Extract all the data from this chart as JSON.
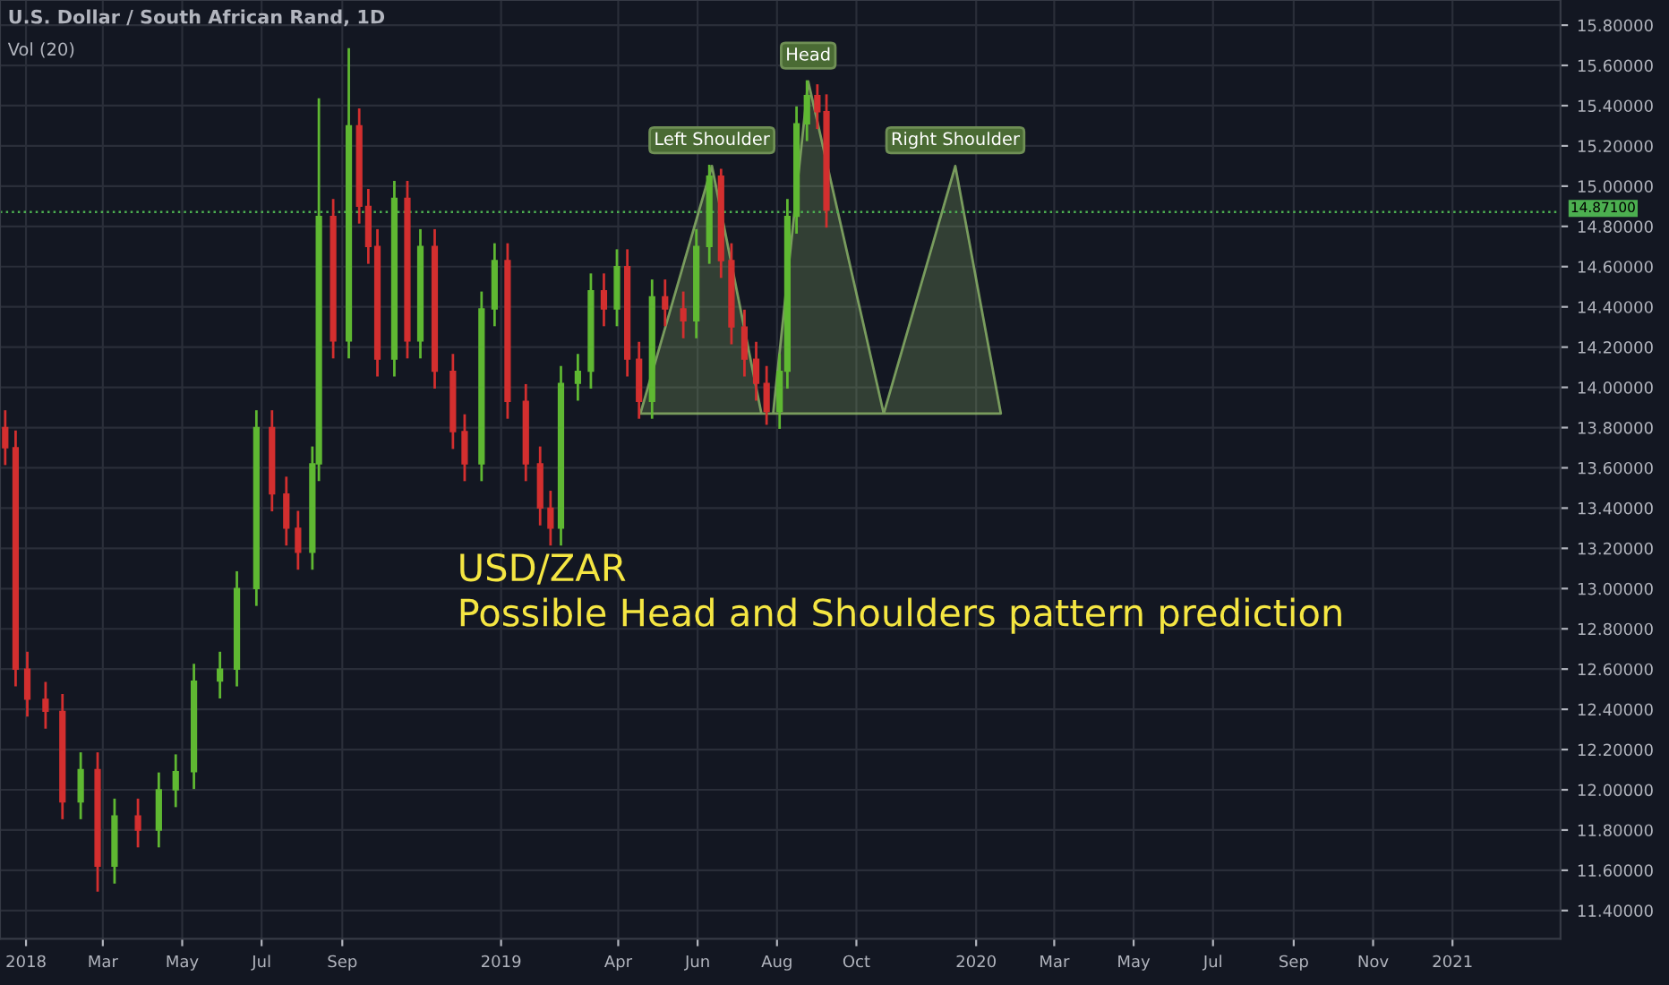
{
  "chart_data": {
    "type": "candlestick",
    "title": "U.S. Dollar / South African Rand, 1D",
    "subtitle": "Vol (20)",
    "x": [
      "2017-12-16",
      "2017-12-24",
      "2018-01-02",
      "2018-01-16",
      "2018-01-29",
      "2018-02-12",
      "2018-02-25",
      "2018-03-10",
      "2018-03-28",
      "2018-04-13",
      "2018-04-26",
      "2018-05-10",
      "2018-05-30",
      "2018-06-12",
      "2018-06-27",
      "2018-07-09",
      "2018-07-20",
      "2018-07-29",
      "2018-08-09",
      "2018-08-14",
      "2018-08-25",
      "2018-09-06",
      "2018-09-14",
      "2018-09-21",
      "2018-09-28",
      "2018-10-11",
      "2018-10-21",
      "2018-10-31",
      "2018-11-11",
      "2018-11-25",
      "2018-12-04",
      "2018-12-17",
      "2018-12-27",
      "2019-01-06",
      "2019-01-20",
      "2019-01-31",
      "2019-02-08",
      "2019-02-16",
      "2019-03-01",
      "2019-03-11",
      "2019-03-21",
      "2019-03-31",
      "2019-04-08",
      "2019-04-17",
      "2019-04-27",
      "2019-05-07",
      "2019-05-21",
      "2019-05-31",
      "2019-06-10",
      "2019-06-19",
      "2019-06-27",
      "2019-07-07",
      "2019-07-16",
      "2019-07-24",
      "2019-08-03",
      "2019-08-09",
      "2019-08-16",
      "2019-08-24",
      "2019-09-01",
      "2019-09-08"
    ],
    "ohlc": [
      [
        13.8,
        13.88,
        13.62,
        13.7
      ],
      [
        13.7,
        13.78,
        12.52,
        12.6
      ],
      [
        12.6,
        12.68,
        12.37,
        12.45
      ],
      [
        12.45,
        12.53,
        12.31,
        12.39
      ],
      [
        12.39,
        12.47,
        11.86,
        11.94
      ],
      [
        11.94,
        12.18,
        11.86,
        12.1
      ],
      [
        12.1,
        12.18,
        11.5,
        11.62
      ],
      [
        11.62,
        11.95,
        11.54,
        11.87
      ],
      [
        11.87,
        11.95,
        11.72,
        11.8
      ],
      [
        11.8,
        12.08,
        11.72,
        12.0
      ],
      [
        12.0,
        12.17,
        11.92,
        12.09
      ],
      [
        12.09,
        12.62,
        12.01,
        12.54
      ],
      [
        12.54,
        12.68,
        12.46,
        12.6
      ],
      [
        12.6,
        13.08,
        12.52,
        13.0
      ],
      [
        13.0,
        13.88,
        12.92,
        13.8
      ],
      [
        13.8,
        13.88,
        13.39,
        13.47
      ],
      [
        13.47,
        13.55,
        13.22,
        13.3
      ],
      [
        13.3,
        13.38,
        13.1,
        13.18
      ],
      [
        13.18,
        13.7,
        13.1,
        13.62
      ],
      [
        13.62,
        15.43,
        13.54,
        14.85
      ],
      [
        14.85,
        14.93,
        14.15,
        14.23
      ],
      [
        14.23,
        15.68,
        14.15,
        15.3
      ],
      [
        15.3,
        15.38,
        14.82,
        14.9
      ],
      [
        14.9,
        14.98,
        14.62,
        14.7
      ],
      [
        14.7,
        14.78,
        14.06,
        14.14
      ],
      [
        14.14,
        15.02,
        14.06,
        14.94
      ],
      [
        14.94,
        15.02,
        14.15,
        14.23
      ],
      [
        14.23,
        14.78,
        14.15,
        14.7
      ],
      [
        14.7,
        14.78,
        14.0,
        14.08
      ],
      [
        14.08,
        14.16,
        13.7,
        13.78
      ],
      [
        13.78,
        13.86,
        13.54,
        13.62
      ],
      [
        13.62,
        14.47,
        13.54,
        14.39
      ],
      [
        14.39,
        14.71,
        14.31,
        14.63
      ],
      [
        14.63,
        14.71,
        13.85,
        13.93
      ],
      [
        13.93,
        14.01,
        13.54,
        13.62
      ],
      [
        13.62,
        13.7,
        13.32,
        13.4
      ],
      [
        13.4,
        13.48,
        13.22,
        13.3
      ],
      [
        13.3,
        14.1,
        13.22,
        14.02
      ],
      [
        14.02,
        14.16,
        13.94,
        14.08
      ],
      [
        14.08,
        14.56,
        14.0,
        14.48
      ],
      [
        14.48,
        14.56,
        14.31,
        14.39
      ],
      [
        14.39,
        14.68,
        14.31,
        14.6
      ],
      [
        14.6,
        14.68,
        14.06,
        14.14
      ],
      [
        14.14,
        14.22,
        13.85,
        13.93
      ],
      [
        13.93,
        14.53,
        13.85,
        14.45
      ],
      [
        14.45,
        14.53,
        14.31,
        14.39
      ],
      [
        14.39,
        14.47,
        14.25,
        14.33
      ],
      [
        14.33,
        14.78,
        14.25,
        14.7
      ],
      [
        14.7,
        15.1,
        14.62,
        15.05
      ],
      [
        15.05,
        15.08,
        14.55,
        14.63
      ],
      [
        14.63,
        14.71,
        14.22,
        14.3
      ],
      [
        14.3,
        14.38,
        14.06,
        14.14
      ],
      [
        14.14,
        14.22,
        13.94,
        14.02
      ],
      [
        14.02,
        14.1,
        13.82,
        13.88
      ],
      [
        13.88,
        14.16,
        13.8,
        14.08
      ],
      [
        14.08,
        14.93,
        14.0,
        14.85
      ],
      [
        14.85,
        15.39,
        14.77,
        15.31
      ],
      [
        15.31,
        15.52,
        15.23,
        15.45
      ],
      [
        15.45,
        15.5,
        15.29,
        15.37
      ],
      [
        15.37,
        15.45,
        14.8,
        14.88
      ]
    ],
    "colors": [
      "#d32f2f",
      "#d32f2f",
      "#d32f2f",
      "#d32f2f",
      "#d32f2f",
      "#5fb832",
      "#d32f2f",
      "#5fb832",
      "#d32f2f",
      "#5fb832",
      "#5fb832",
      "#5fb832",
      "#5fb832",
      "#5fb832",
      "#5fb832",
      "#d32f2f",
      "#d32f2f",
      "#d32f2f",
      "#5fb832",
      "#5fb832",
      "#d32f2f",
      "#5fb832",
      "#d32f2f",
      "#d32f2f",
      "#d32f2f",
      "#5fb832",
      "#d32f2f",
      "#5fb832",
      "#d32f2f",
      "#d32f2f",
      "#d32f2f",
      "#5fb832",
      "#5fb832",
      "#d32f2f",
      "#d32f2f",
      "#d32f2f",
      "#d32f2f",
      "#5fb832",
      "#5fb832",
      "#5fb832",
      "#d32f2f",
      "#5fb832",
      "#d32f2f",
      "#d32f2f",
      "#5fb832",
      "#d32f2f",
      "#d32f2f",
      "#5fb832",
      "#5fb832",
      "#d32f2f",
      "#d32f2f",
      "#d32f2f",
      "#d32f2f",
      "#d32f2f",
      "#5fb832",
      "#5fb832",
      "#5fb832",
      "#5fb832",
      "#d32f2f",
      "#d32f2f"
    ],
    "series": [
      {
        "type": "area",
        "color": "#8fb86a",
        "x": [
          "2019-04-18",
          "2019-06-12",
          "2019-07-20",
          "2019-07-29",
          "2019-08-25",
          "2019-10-22",
          "2019-12-16",
          "2020-01-20"
        ],
        "values": [
          13.87,
          15.1,
          13.87,
          13.87,
          15.52,
          13.87,
          15.1,
          13.87
        ]
      }
    ],
    "ref_lines": [
      {
        "axis": "y",
        "value": 14.871,
        "label": "14.87100",
        "color": "#4caf50",
        "line_style": "dotted"
      }
    ],
    "annotations": [
      {
        "text": "Left Shoulder",
        "x": "2019-06-12",
        "y": 15.1
      },
      {
        "text": "Head",
        "x": "2019-08-25",
        "y": 15.52
      },
      {
        "text": "Right Shoulder",
        "x": "2019-12-16",
        "y": 15.1
      },
      "USD/ZAR",
      "Possible Head and Shoulders pattern prediction"
    ],
    "xlim": [
      "2017-12-12",
      "2021-03-25"
    ],
    "xticks": [
      {
        "value": "2018-01-01",
        "label": "2018"
      },
      {
        "value": "2018-03-01",
        "label": "Mar"
      },
      {
        "value": "2018-05-01",
        "label": "May"
      },
      {
        "value": "2018-07-01",
        "label": "Jul"
      },
      {
        "value": "2018-09-01",
        "label": "Sep"
      },
      {
        "value": "2019-01-01",
        "label": "2019"
      },
      {
        "value": "2019-04-01",
        "label": "Apr"
      },
      {
        "value": "2019-06-01",
        "label": "Jun"
      },
      {
        "value": "2019-08-01",
        "label": "Aug"
      },
      {
        "value": "2019-10-01",
        "label": "Oct"
      },
      {
        "value": "2020-01-01",
        "label": "2020"
      },
      {
        "value": "2020-03-01",
        "label": "Mar"
      },
      {
        "value": "2020-05-01",
        "label": "May"
      },
      {
        "value": "2020-07-01",
        "label": "Jul"
      },
      {
        "value": "2020-09-01",
        "label": "Sep"
      },
      {
        "value": "2020-11-01",
        "label": "Nov"
      },
      {
        "value": "2021-01-01",
        "label": "2021"
      }
    ],
    "ylim": [
      11.26,
      15.925
    ],
    "yticks": [
      {
        "value": 11.4,
        "label": "11.40000"
      },
      {
        "value": 11.6,
        "label": "11.60000"
      },
      {
        "value": 11.8,
        "label": "11.80000"
      },
      {
        "value": 12.0,
        "label": "12.00000"
      },
      {
        "value": 12.2,
        "label": "12.20000"
      },
      {
        "value": 12.4,
        "label": "12.40000"
      },
      {
        "value": 12.6,
        "label": "12.60000"
      },
      {
        "value": 12.8,
        "label": "12.80000"
      },
      {
        "value": 13.0,
        "label": "13.00000"
      },
      {
        "value": 13.2,
        "label": "13.20000"
      },
      {
        "value": 13.4,
        "label": "13.40000"
      },
      {
        "value": 13.6,
        "label": "13.60000"
      },
      {
        "value": 13.8,
        "label": "13.80000"
      },
      {
        "value": 14.0,
        "label": "14.00000"
      },
      {
        "value": 14.2,
        "label": "14.20000"
      },
      {
        "value": 14.4,
        "label": "14.40000"
      },
      {
        "value": 14.6,
        "label": "14.60000"
      },
      {
        "value": 14.8,
        "label": "14.80000"
      },
      {
        "value": 15.0,
        "label": "15.00000"
      },
      {
        "value": 15.2,
        "label": "15.20000"
      },
      {
        "value": 15.4,
        "label": "15.40000"
      },
      {
        "value": 15.6,
        "label": "15.60000"
      },
      {
        "value": 15.8,
        "label": "15.80000"
      }
    ],
    "grid": true
  }
}
